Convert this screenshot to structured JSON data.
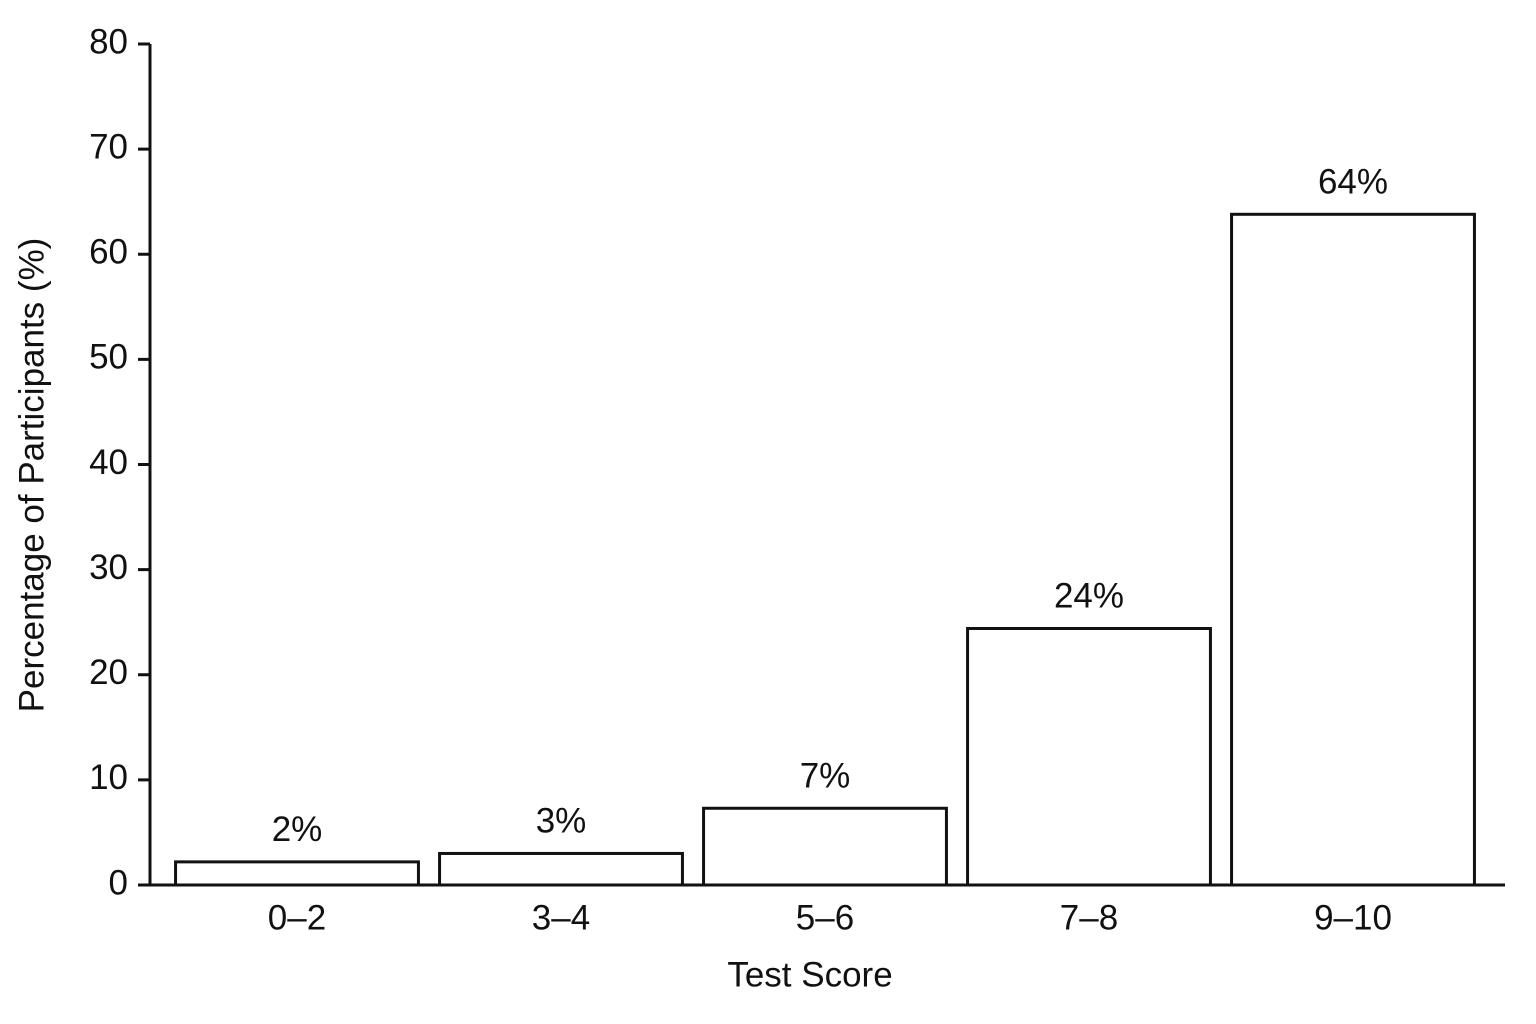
{
  "chart_data": {
    "type": "bar",
    "x_label": "Test Score",
    "y_label": "Percentage of Participants (%)",
    "categories": [
      "0–2",
      "3–4",
      "5–6",
      "7–8",
      "9–10"
    ],
    "values": [
      2.2,
      3.0,
      7.3,
      24.4,
      63.8
    ],
    "value_labels": [
      "2%",
      "3%",
      "7%",
      "24%",
      "64%"
    ],
    "color": "#ffffff",
    "ylim": [
      0,
      80
    ],
    "yticks": [
      0,
      10,
      20,
      30,
      40,
      50,
      60,
      70,
      80
    ],
    "grid": false
  }
}
